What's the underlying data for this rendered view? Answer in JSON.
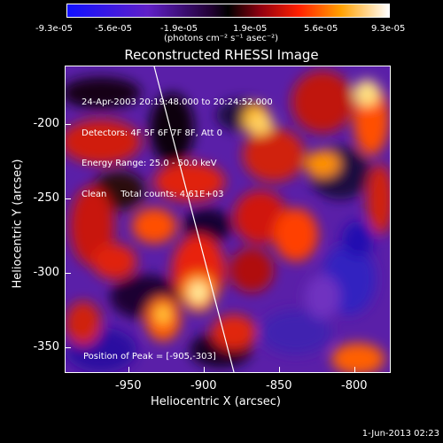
{
  "colorbar": {
    "tick_labels": [
      "-9.3e-05",
      "-5.6e-05",
      "-1.9e-05",
      "1.9e-05",
      "5.6e-05",
      "9.3e-05"
    ],
    "units_label": "(photons cm⁻² s⁻¹ asec⁻²)"
  },
  "title": "Reconstructed RHESSI Image",
  "info_lines": [
    "24-Apr-2003 20:19:48.000 to 20:24:52.000",
    "Detectors: 4F 5F 6F 7F 8F, Att 0",
    "Energy Range: 25.0 - 50.0 keV",
    "Clean     Total counts: 4.61E+03"
  ],
  "peak_label": "Position of Peak = [-905,-303]",
  "axes": {
    "xlabel": "Heliocentric X (arcsec)",
    "ylabel": "Heliocentric Y (arcsec)",
    "x_ticks": [
      "-950",
      "-900",
      "-850",
      "-800"
    ],
    "y_ticks": [
      "-200",
      "-250",
      "-300",
      "-350"
    ]
  },
  "footer_date": "1-Jun-2013 02:23",
  "colors": {
    "negative": "#1c10ff",
    "zero": "#000000",
    "positive_low": "#c81010",
    "positive_mid": "#ff8000",
    "positive_high": "#ffffff"
  }
}
